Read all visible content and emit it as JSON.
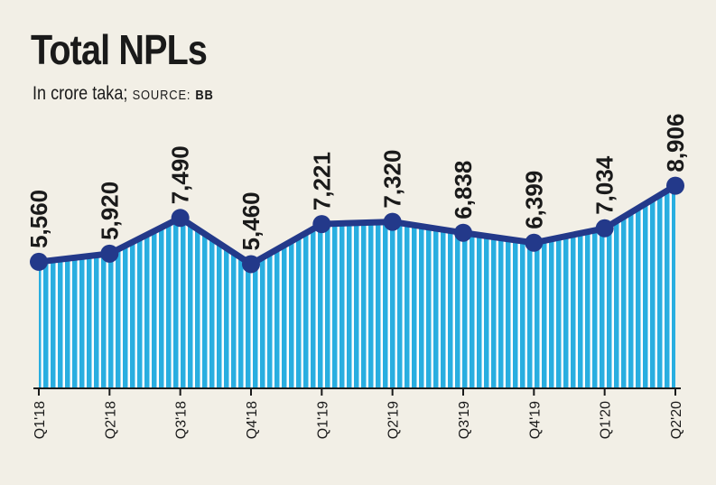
{
  "title": "Total NPLs",
  "subtitle": {
    "unit": "In crore taka;",
    "source_label": "SOURCE:",
    "source_value": "BB"
  },
  "colors": {
    "background": "#f2efe6",
    "fill": "#29aee0",
    "line": "#23398a",
    "text": "#1a1a1a"
  },
  "chart_data": {
    "type": "area",
    "title": "Total NPLs",
    "categories": [
      "Q1'18",
      "Q2'18",
      "Q3'18",
      "Q4'18",
      "Q1'19",
      "Q2'19",
      "Q3'19",
      "Q4'19",
      "Q1'20",
      "Q2'20"
    ],
    "values": [
      5560,
      5920,
      7490,
      5460,
      7221,
      7320,
      6838,
      6399,
      7034,
      8906
    ],
    "value_labels": [
      "5,560",
      "5,920",
      "7,490",
      "5,460",
      "7,221",
      "7,320",
      "6,838",
      "6,399",
      "7,034",
      "8,906"
    ],
    "ylim": [
      0,
      15000
    ],
    "grid": false,
    "legend": "none"
  }
}
